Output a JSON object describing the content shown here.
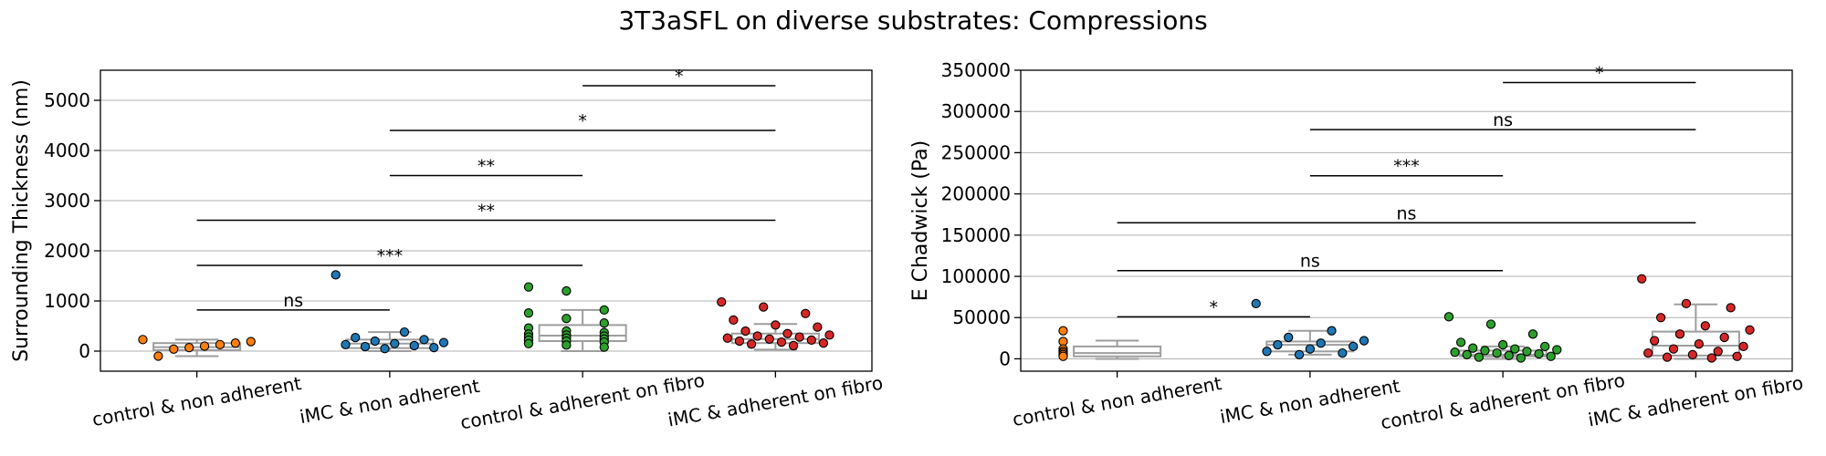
{
  "title": "3T3aSFL on diverse substrates: Compressions",
  "colors": {
    "control & non adherent": "#ff7f0e",
    "iMC & non adherent": "#1f77b4",
    "control & adherent on fibro": "#2ca02c",
    "iMC & adherent on fibro": "#d62728",
    "box": "#9e9e9e",
    "grid": "#b0b0b0"
  },
  "chart_data": [
    {
      "type": "box",
      "ylabel": "Surrounding Thickness (nm)",
      "ylim": [
        -400,
        5600
      ],
      "yticks": [
        0,
        1000,
        2000,
        3000,
        4000,
        5000
      ],
      "grid": "horizontal",
      "categories": [
        "control & non adherent",
        "iMC & non adherent",
        "control & adherent on fibro",
        "iMC & adherent on fibro"
      ],
      "boxes": [
        {
          "q1": 20,
          "median": 80,
          "q3": 160,
          "whislo": -100,
          "whishi": 230
        },
        {
          "q1": 60,
          "median": 150,
          "q3": 230,
          "whislo": 0,
          "whishi": 380
        },
        {
          "q1": 200,
          "median": 310,
          "q3": 520,
          "whislo": 0,
          "whishi": 820
        },
        {
          "q1": 160,
          "median": 240,
          "q3": 350,
          "whislo": 30,
          "whishi": 540
        }
      ],
      "points": [
        [
          230,
          190,
          160,
          130,
          100,
          70,
          40,
          -100
        ],
        [
          1520,
          380,
          270,
          230,
          200,
          170,
          150,
          130,
          110,
          90,
          70,
          50
        ],
        [
          1280,
          1200,
          820,
          760,
          650,
          560,
          460,
          400,
          370,
          340,
          320,
          300,
          280,
          260,
          240,
          220,
          200,
          180,
          150,
          120,
          80
        ],
        [
          980,
          880,
          750,
          620,
          520,
          480,
          400,
          350,
          320,
          300,
          280,
          260,
          240,
          220,
          200,
          180,
          160,
          140,
          110
        ]
      ],
      "annotations": [
        {
          "from": 0,
          "to": 1,
          "y": 820,
          "label": "ns"
        },
        {
          "from": 0,
          "to": 2,
          "y": 1710,
          "label": "***"
        },
        {
          "from": 0,
          "to": 3,
          "y": 2610,
          "label": "**"
        },
        {
          "from": 1,
          "to": 2,
          "y": 3500,
          "label": "**"
        },
        {
          "from": 1,
          "to": 3,
          "y": 4400,
          "label": "*"
        },
        {
          "from": 2,
          "to": 3,
          "y": 5290,
          "label": "*"
        }
      ]
    },
    {
      "type": "box",
      "ylabel": "E Chadwick (Pa)",
      "ylim": [
        -15000,
        350000
      ],
      "yticks": [
        0,
        50000,
        100000,
        150000,
        200000,
        250000,
        300000,
        350000
      ],
      "grid": "horizontal",
      "categories": [
        "control & non adherent",
        "iMC & non adherent",
        "control & adherent on fibro",
        "iMC & adherent on fibro"
      ],
      "boxes": [
        {
          "q1": 3000,
          "median": 7000,
          "q3": 15000,
          "whislo": 0,
          "whishi": 22000
        },
        {
          "q1": 9000,
          "median": 17000,
          "q3": 21000,
          "whislo": 5000,
          "whishi": 34000
        },
        {
          "q1": 3000,
          "median": 5000,
          "q3": 10000,
          "whislo": 0,
          "whishi": 15000
        },
        {
          "q1": 4000,
          "median": 16000,
          "q3": 33000,
          "whislo": 0,
          "whishi": 66000
        }
      ],
      "points": [
        [
          34000,
          21000,
          12000,
          9000,
          7000,
          5000,
          3000
        ],
        [
          67000,
          34000,
          26000,
          22000,
          19000,
          17000,
          15000,
          12000,
          9000,
          7000,
          5000
        ],
        [
          51000,
          42000,
          30000,
          20000,
          17000,
          15000,
          13000,
          12000,
          11000,
          10000,
          9000,
          8000,
          7000,
          6000,
          5000,
          4000,
          3000,
          2000,
          1000
        ],
        [
          97000,
          67000,
          62000,
          50000,
          40000,
          35000,
          30000,
          26000,
          22000,
          18000,
          15000,
          12000,
          9000,
          7000,
          5000,
          3000,
          2000,
          1000
        ]
      ],
      "annotations": [
        {
          "from": 0,
          "to": 1,
          "y": 51000,
          "label": "*"
        },
        {
          "from": 0,
          "to": 2,
          "y": 107000,
          "label": "ns"
        },
        {
          "from": 0,
          "to": 3,
          "y": 165000,
          "label": "ns"
        },
        {
          "from": 1,
          "to": 2,
          "y": 222000,
          "label": "***"
        },
        {
          "from": 1,
          "to": 3,
          "y": 278000,
          "label": "ns"
        },
        {
          "from": 2,
          "to": 3,
          "y": 335000,
          "label": "*"
        }
      ]
    }
  ]
}
